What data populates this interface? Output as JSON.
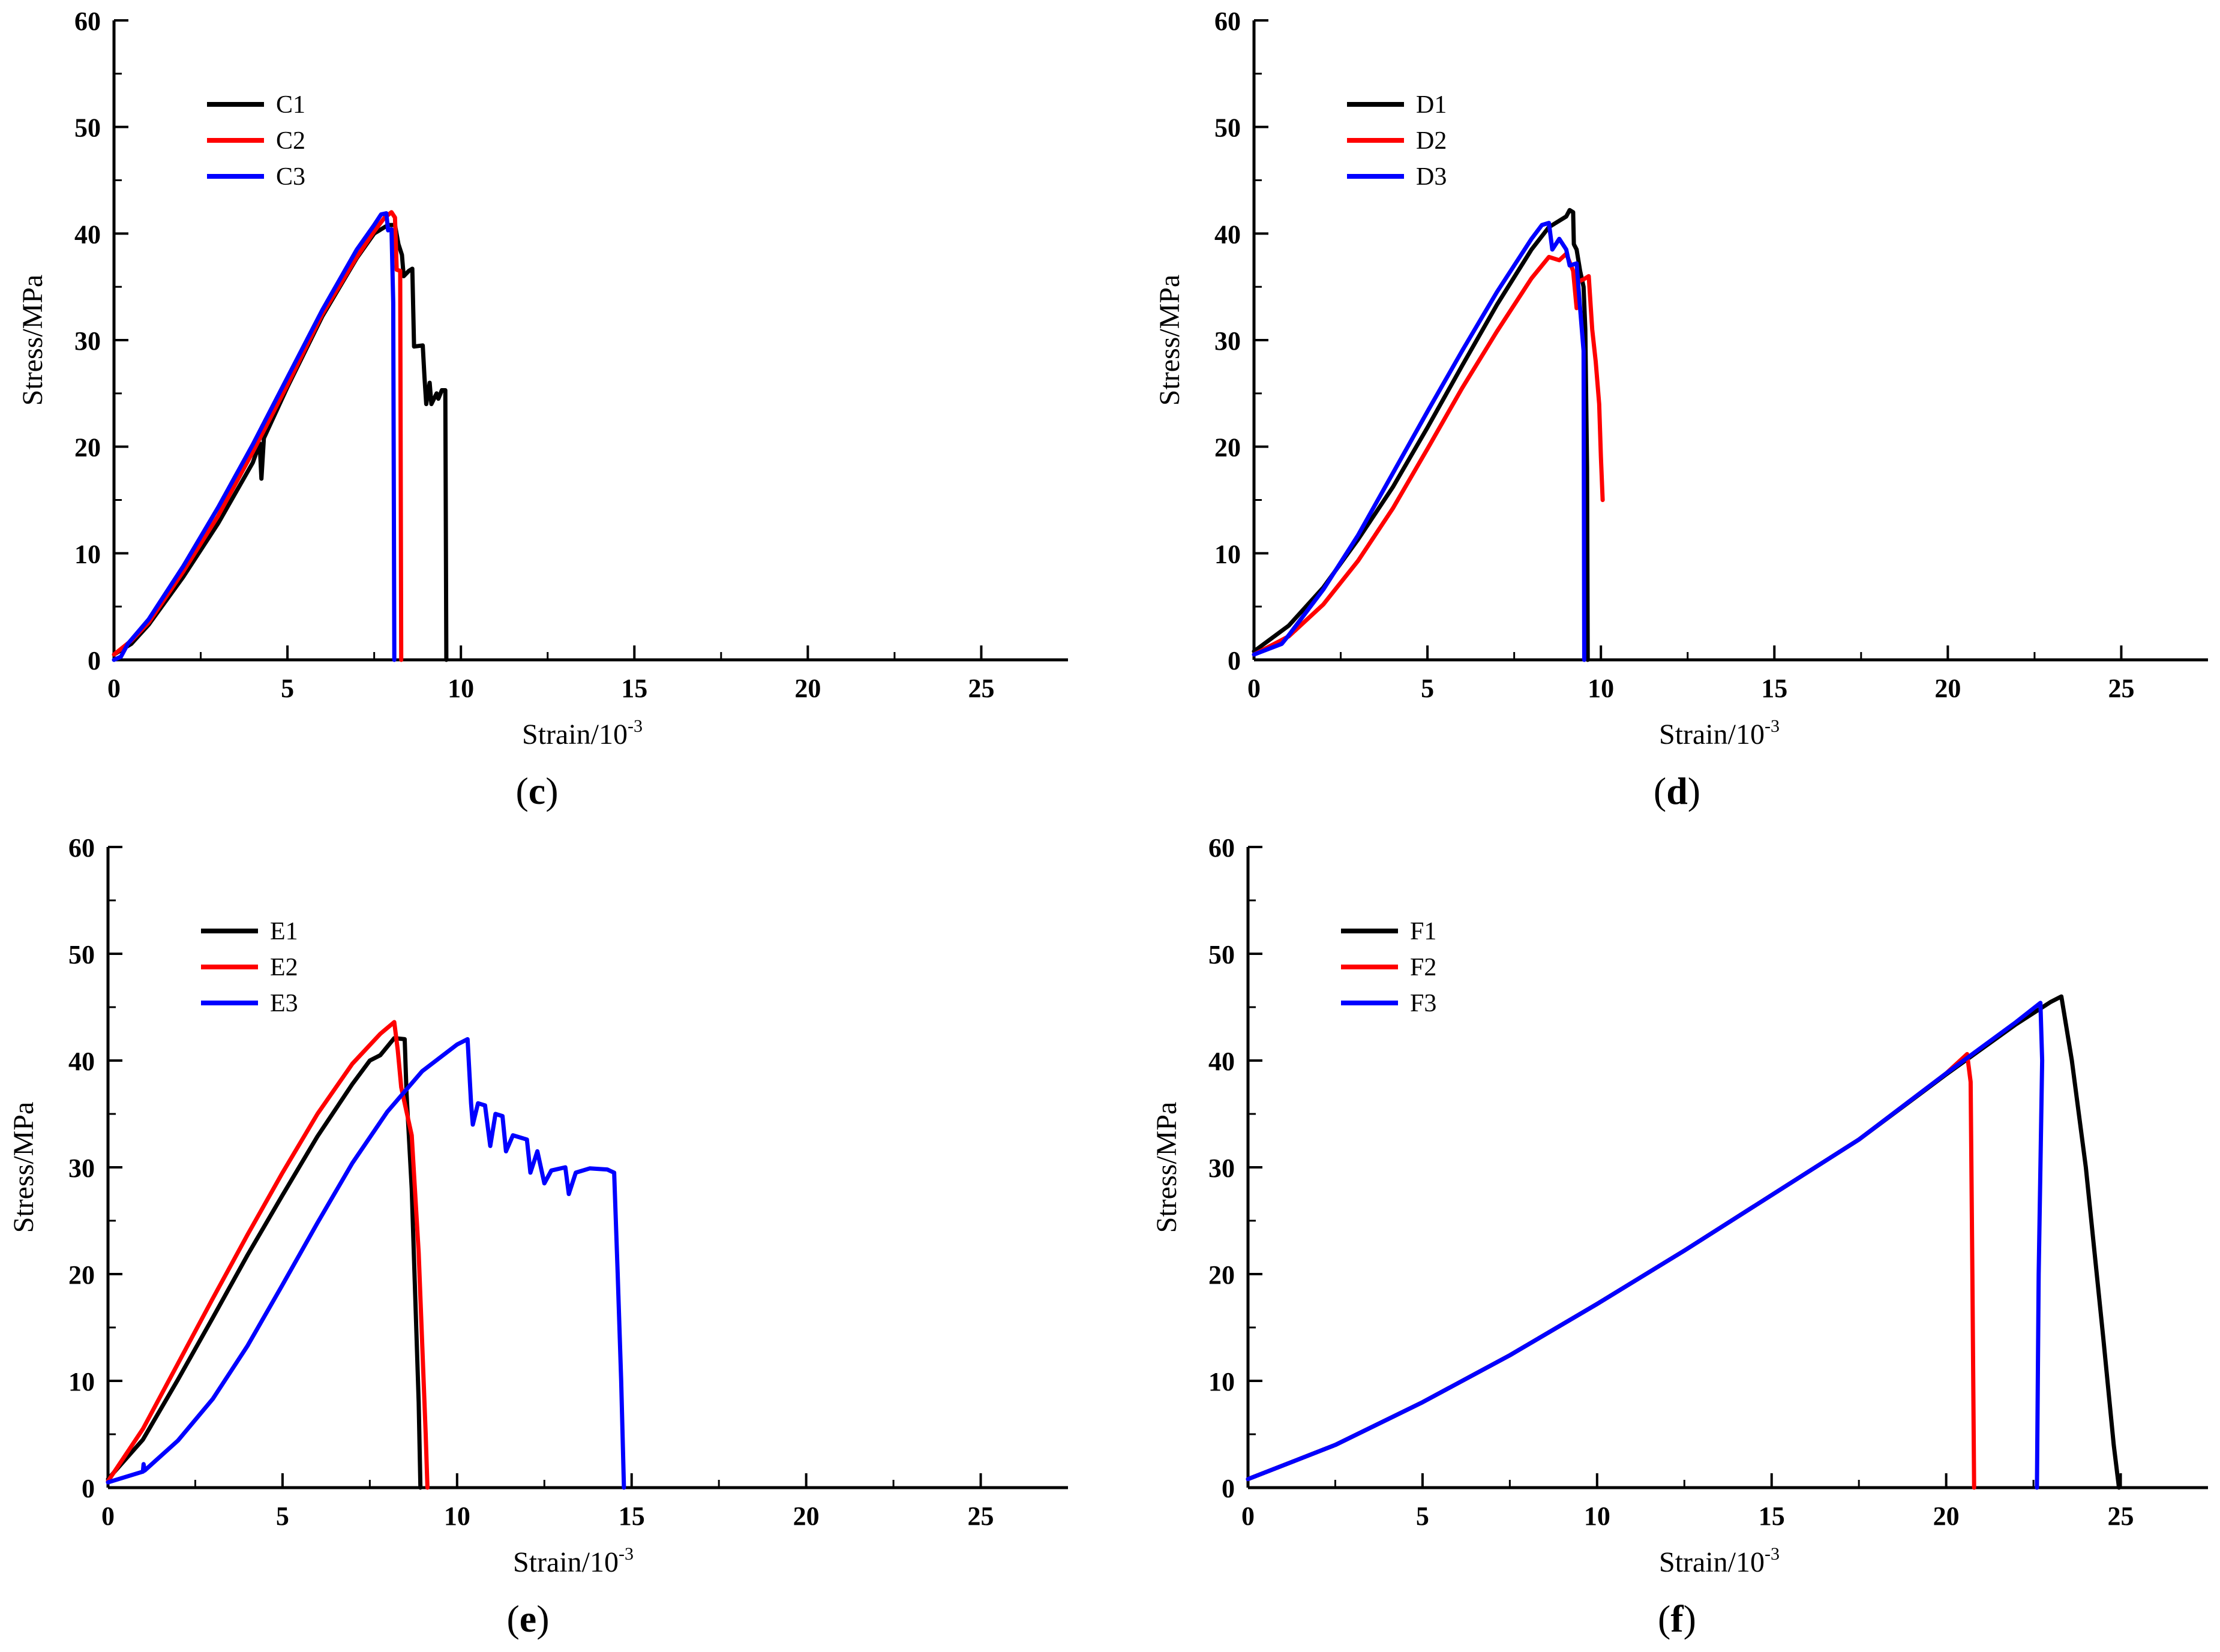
{
  "chart_data": [
    {
      "type": "line",
      "panel_label": "c",
      "xlabel": "Strain/10",
      "xlabel_exp": "-3",
      "ylabel": "Stress/MPa",
      "xlim": [
        0,
        27.5
      ],
      "ylim": [
        0,
        60
      ],
      "xticks": [
        0,
        5,
        10,
        15,
        20,
        25
      ],
      "yticks": [
        0,
        10,
        20,
        30,
        40,
        50,
        60
      ],
      "legend": "top-left",
      "series": [
        {
          "name": "C1",
          "color": "#000000",
          "points": [
            [
              0,
              0.5
            ],
            [
              0.5,
              1.5
            ],
            [
              1,
              3.3
            ],
            [
              2,
              7.8
            ],
            [
              3,
              12.8
            ],
            [
              4,
              18.5
            ],
            [
              4.2,
              20.3
            ],
            [
              4.25,
              17
            ],
            [
              4.32,
              20.8
            ],
            [
              5,
              25.6
            ],
            [
              6,
              32.2
            ],
            [
              7,
              37.7
            ],
            [
              7.5,
              40
            ],
            [
              7.9,
              40.8
            ],
            [
              8.1,
              40.8
            ],
            [
              8.2,
              39
            ],
            [
              8.3,
              38
            ],
            [
              8.35,
              36
            ],
            [
              8.5,
              36.5
            ],
            [
              8.6,
              36.7
            ],
            [
              8.65,
              29.4
            ],
            [
              8.9,
              29.5
            ],
            [
              8.95,
              26.5
            ],
            [
              9.0,
              24
            ],
            [
              9.1,
              26
            ],
            [
              9.15,
              24
            ],
            [
              9.3,
              25
            ],
            [
              9.35,
              24.5
            ],
            [
              9.45,
              25.3
            ],
            [
              9.55,
              25.3
            ],
            [
              9.58,
              0
            ]
          ]
        },
        {
          "name": "C2",
          "color": "#ff0000",
          "points": [
            [
              0,
              0.5
            ],
            [
              0.5,
              1.8
            ],
            [
              1,
              3.5
            ],
            [
              2,
              8.3
            ],
            [
              3,
              13.5
            ],
            [
              4,
              19.5
            ],
            [
              5,
              25.8
            ],
            [
              6,
              32.4
            ],
            [
              7,
              37.8
            ],
            [
              7.5,
              40.2
            ],
            [
              7.8,
              41.5
            ],
            [
              8,
              42
            ],
            [
              8.1,
              41.5
            ],
            [
              8.15,
              36.6
            ],
            [
              8.25,
              36.5
            ],
            [
              8.28,
              0
            ]
          ]
        },
        {
          "name": "C3",
          "color": "#0000ff",
          "points": [
            [
              0,
              0
            ],
            [
              0.2,
              0.3
            ],
            [
              0.4,
              1.5
            ],
            [
              1,
              3.8
            ],
            [
              2,
              8.8
            ],
            [
              3,
              14.3
            ],
            [
              4,
              20.2
            ],
            [
              5,
              26.5
            ],
            [
              6,
              32.8
            ],
            [
              7,
              38.5
            ],
            [
              7.5,
              40.8
            ],
            [
              7.7,
              41.8
            ],
            [
              7.85,
              41.9
            ],
            [
              7.9,
              40.3
            ],
            [
              8,
              40.4
            ],
            [
              8.05,
              33.5
            ],
            [
              8.08,
              0
            ]
          ]
        }
      ]
    },
    {
      "type": "line",
      "panel_label": "d",
      "xlabel": "Strain/10",
      "xlabel_exp": "-3",
      "ylabel": "Stress/MPa",
      "xlim": [
        0,
        27.5
      ],
      "ylim": [
        0,
        60
      ],
      "xticks": [
        0,
        5,
        10,
        15,
        20,
        25
      ],
      "yticks": [
        0,
        10,
        20,
        30,
        40,
        50,
        60
      ],
      "legend": "top-left",
      "series": [
        {
          "name": "D1",
          "color": "#000000",
          "points": [
            [
              0,
              0.8
            ],
            [
              1,
              3.2
            ],
            [
              2,
              6.8
            ],
            [
              3,
              11.3
            ],
            [
              4,
              16.2
            ],
            [
              5,
              21.8
            ],
            [
              6,
              27.6
            ],
            [
              7,
              33.3
            ],
            [
              8,
              38.5
            ],
            [
              8.5,
              40.6
            ],
            [
              9,
              41.6
            ],
            [
              9.1,
              42.2
            ],
            [
              9.2,
              42
            ],
            [
              9.22,
              39
            ],
            [
              9.3,
              38.5
            ],
            [
              9.4,
              36.5
            ],
            [
              9.5,
              35
            ],
            [
              9.55,
              31
            ],
            [
              9.6,
              18
            ],
            [
              9.62,
              0
            ]
          ]
        },
        {
          "name": "D2",
          "color": "#ff0000",
          "points": [
            [
              0,
              0.5
            ],
            [
              1,
              2.2
            ],
            [
              2,
              5.2
            ],
            [
              3,
              9.3
            ],
            [
              4,
              14.2
            ],
            [
              5,
              19.8
            ],
            [
              6,
              25.5
            ],
            [
              7,
              30.8
            ],
            [
              8,
              35.8
            ],
            [
              8.5,
              37.8
            ],
            [
              8.8,
              37.5
            ],
            [
              9,
              38.1
            ],
            [
              9.2,
              36.5
            ],
            [
              9.3,
              33
            ],
            [
              9.35,
              35.5
            ],
            [
              9.5,
              35.7
            ],
            [
              9.65,
              36
            ],
            [
              9.75,
              31
            ],
            [
              9.85,
              28
            ],
            [
              9.95,
              24
            ],
            [
              10.0,
              19
            ],
            [
              10.05,
              15
            ]
          ]
        },
        {
          "name": "D3",
          "color": "#0000ff",
          "points": [
            [
              0,
              0.5
            ],
            [
              0.8,
              1.5
            ],
            [
              1,
              2.3
            ],
            [
              2,
              6.6
            ],
            [
              3,
              11.7
            ],
            [
              4,
              17.5
            ],
            [
              5,
              23.3
            ],
            [
              6,
              29
            ],
            [
              7,
              34.5
            ],
            [
              8,
              39.5
            ],
            [
              8.3,
              40.8
            ],
            [
              8.5,
              41
            ],
            [
              8.6,
              38.5
            ],
            [
              8.8,
              39.5
            ],
            [
              9,
              38.5
            ],
            [
              9.1,
              37
            ],
            [
              9.3,
              37.2
            ],
            [
              9.4,
              33
            ],
            [
              9.5,
              29
            ],
            [
              9.52,
              0
            ]
          ]
        }
      ]
    },
    {
      "type": "line",
      "panel_label": "e",
      "xlabel": "Strain/10",
      "xlabel_exp": "-3",
      "ylabel": "Stress/MPa",
      "xlim": [
        0,
        27.5
      ],
      "ylim": [
        0,
        60
      ],
      "xticks": [
        0,
        5,
        10,
        15,
        20,
        25
      ],
      "yticks": [
        0,
        10,
        20,
        30,
        40,
        50,
        60
      ],
      "legend": "top-left",
      "series": [
        {
          "name": "E1",
          "color": "#000000",
          "points": [
            [
              0,
              0.8
            ],
            [
              1,
              4.5
            ],
            [
              2,
              10.1
            ],
            [
              3,
              15.9
            ],
            [
              4,
              21.8
            ],
            [
              5,
              27.4
            ],
            [
              6,
              32.9
            ],
            [
              7,
              37.8
            ],
            [
              7.5,
              40
            ],
            [
              7.8,
              40.5
            ],
            [
              8.2,
              42.1
            ],
            [
              8.5,
              42
            ],
            [
              8.55,
              37
            ],
            [
              8.7,
              28
            ],
            [
              8.9,
              8
            ],
            [
              8.95,
              0
            ]
          ]
        },
        {
          "name": "E2",
          "color": "#ff0000",
          "points": [
            [
              0,
              0.6
            ],
            [
              1,
              5.5
            ],
            [
              2,
              11.6
            ],
            [
              3,
              17.7
            ],
            [
              4,
              23.7
            ],
            [
              5,
              29.5
            ],
            [
              6,
              35
            ],
            [
              7,
              39.7
            ],
            [
              7.8,
              42.5
            ],
            [
              8.2,
              43.6
            ],
            [
              8.3,
              41
            ],
            [
              8.4,
              37.5
            ],
            [
              8.5,
              36
            ],
            [
              8.7,
              33
            ],
            [
              8.9,
              22
            ],
            [
              9.1,
              5
            ],
            [
              9.15,
              0
            ]
          ]
        },
        {
          "name": "E3",
          "color": "#0000ff",
          "points": [
            [
              0,
              0.5
            ],
            [
              1,
              1.5
            ],
            [
              1.02,
              2.2
            ],
            [
              1.05,
              1.6
            ],
            [
              2,
              4.4
            ],
            [
              3,
              8.3
            ],
            [
              4,
              13.3
            ],
            [
              5,
              19
            ],
            [
              6,
              24.8
            ],
            [
              7,
              30.4
            ],
            [
              8,
              35.2
            ],
            [
              9,
              39
            ],
            [
              10,
              41.5
            ],
            [
              10.3,
              42
            ],
            [
              10.4,
              36
            ],
            [
              10.45,
              34
            ],
            [
              10.6,
              36
            ],
            [
              10.8,
              35.8
            ],
            [
              10.95,
              32
            ],
            [
              11.1,
              35
            ],
            [
              11.3,
              34.8
            ],
            [
              11.4,
              31.5
            ],
            [
              11.6,
              33
            ],
            [
              12,
              32.6
            ],
            [
              12.1,
              29.5
            ],
            [
              12.3,
              31.5
            ],
            [
              12.5,
              28.5
            ],
            [
              12.7,
              29.7
            ],
            [
              13.1,
              30
            ],
            [
              13.2,
              27.5
            ],
            [
              13.4,
              29.5
            ],
            [
              13.8,
              29.9
            ],
            [
              14.3,
              29.8
            ],
            [
              14.5,
              29.5
            ],
            [
              14.6,
              20
            ],
            [
              14.7,
              10
            ],
            [
              14.78,
              0
            ]
          ]
        }
      ]
    },
    {
      "type": "line",
      "panel_label": "f",
      "xlabel": "Strain/10",
      "xlabel_exp": "-3",
      "ylabel": "Stress/MPa",
      "xlim": [
        0,
        27.5
      ],
      "ylim": [
        0,
        60
      ],
      "xticks": [
        0,
        5,
        10,
        15,
        20,
        25
      ],
      "yticks": [
        0,
        10,
        20,
        30,
        40,
        50,
        60
      ],
      "legend": "top-left",
      "series": [
        {
          "name": "F1",
          "color": "#000000",
          "points": [
            [
              0,
              0.8
            ],
            [
              2.5,
              4
            ],
            [
              5,
              8
            ],
            [
              7.5,
              12.4
            ],
            [
              10,
              17.2
            ],
            [
              12.5,
              22.2
            ],
            [
              15,
              27.4
            ],
            [
              17.5,
              32.6
            ],
            [
              20,
              38.7
            ],
            [
              22,
              43.4
            ],
            [
              23,
              45.5
            ],
            [
              23.3,
              46
            ],
            [
              23.6,
              40
            ],
            [
              24,
              30
            ],
            [
              24.5,
              14
            ],
            [
              24.8,
              4
            ],
            [
              24.95,
              0
            ]
          ]
        },
        {
          "name": "F2",
          "color": "#ff0000",
          "points": [
            [
              0,
              0.8
            ],
            [
              2.5,
              4
            ],
            [
              5,
              8
            ],
            [
              7.5,
              12.4
            ],
            [
              10,
              17.2
            ],
            [
              12.5,
              22.2
            ],
            [
              15,
              27.4
            ],
            [
              17.5,
              32.6
            ],
            [
              20,
              38.8
            ],
            [
              20.6,
              40.6
            ],
            [
              20.7,
              38
            ],
            [
              20.75,
              20
            ],
            [
              20.8,
              0
            ]
          ]
        },
        {
          "name": "F3",
          "color": "#0000ff",
          "points": [
            [
              0,
              0.8
            ],
            [
              2.5,
              4
            ],
            [
              5,
              8
            ],
            [
              7.5,
              12.4
            ],
            [
              10,
              17.2
            ],
            [
              12.5,
              22.2
            ],
            [
              15,
              27.4
            ],
            [
              17.5,
              32.6
            ],
            [
              20,
              38.8
            ],
            [
              22,
              43.6
            ],
            [
              22.7,
              45.4
            ],
            [
              22.75,
              40
            ],
            [
              22.65,
              20
            ],
            [
              22.6,
              0
            ]
          ]
        }
      ]
    }
  ]
}
